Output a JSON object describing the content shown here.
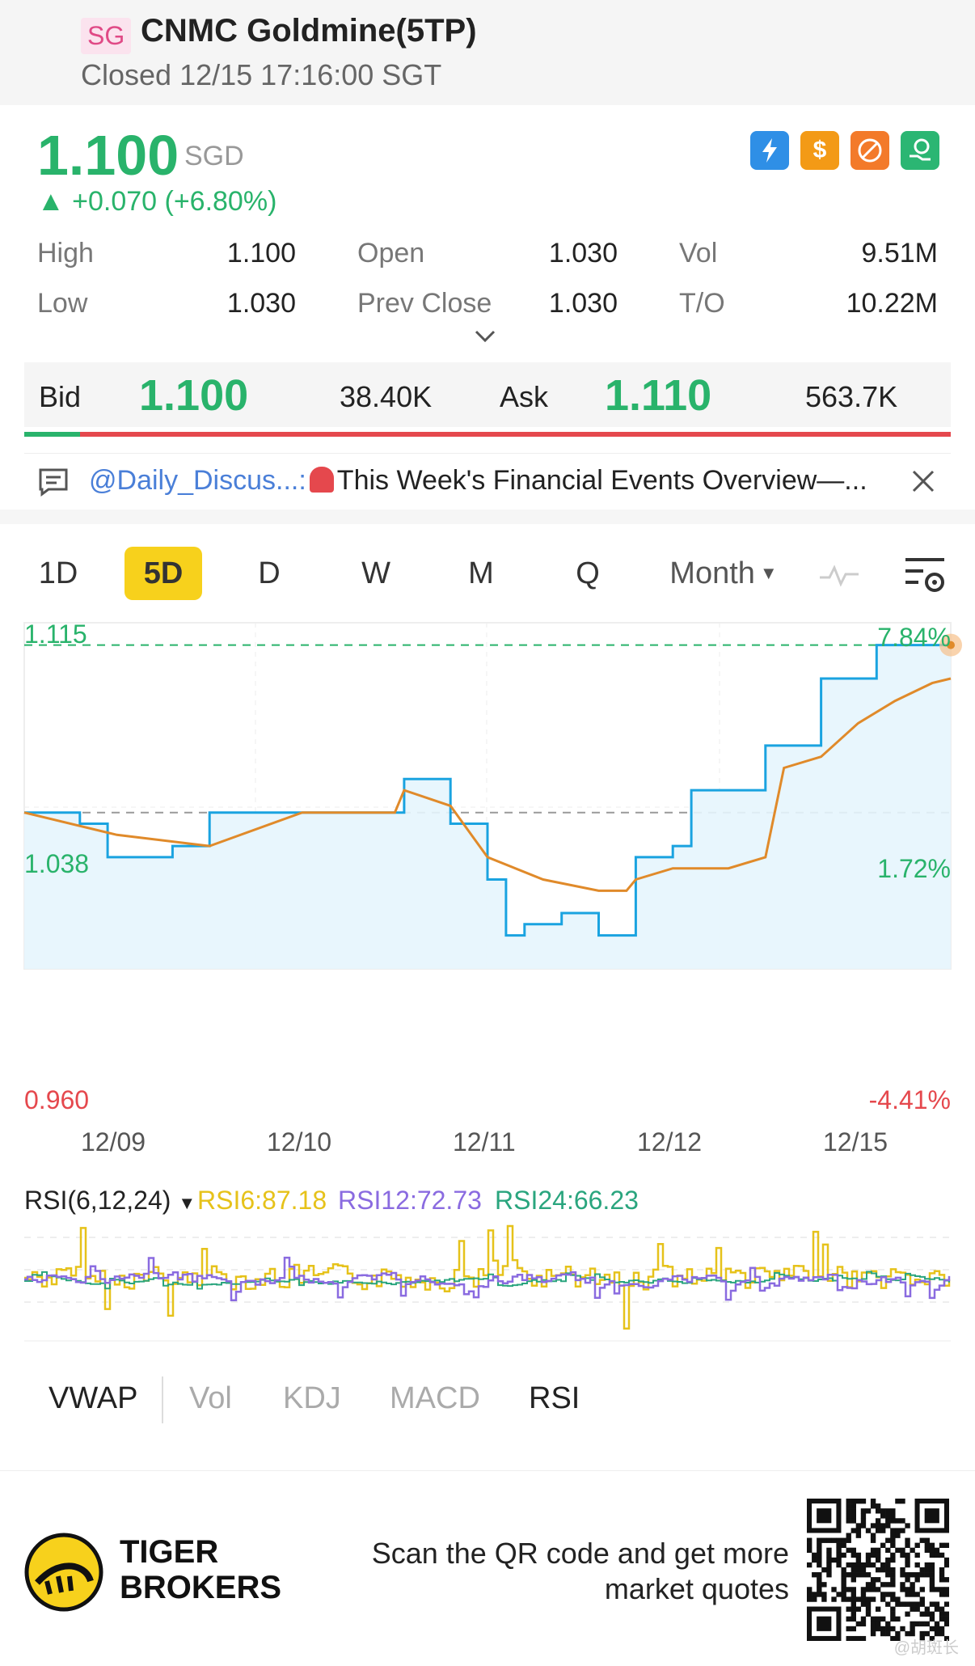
{
  "header": {
    "market_tag": "SG",
    "name": "CNMC Goldmine(5TP)",
    "status": "Closed 12/15 17:16:00 SGT"
  },
  "quote": {
    "price": "1.100",
    "currency": "SGD",
    "change": "+0.070 (+6.80%)",
    "change_arrow": "▲",
    "badges": [
      {
        "icon": "lightning-icon",
        "color": "#2f8fe6"
      },
      {
        "icon": "dollar-icon",
        "color": "#f39a16"
      },
      {
        "icon": "no-short-icon",
        "color": "#f37a2a"
      },
      {
        "icon": "hand-coin-icon",
        "color": "#2bb673"
      }
    ],
    "stats": {
      "high_label": "High",
      "high": "1.100",
      "low_label": "Low",
      "low": "1.030",
      "open_label": "Open",
      "open": "1.030",
      "prev_close_label": "Prev Close",
      "prev_close": "1.030",
      "vol_label": "Vol",
      "vol": "9.51M",
      "to_label": "T/O",
      "to": "10.22M"
    }
  },
  "bidask": {
    "bid_label": "Bid",
    "bid_price": "1.100",
    "bid_size": "38.40K",
    "ask_label": "Ask",
    "ask_price": "1.110",
    "ask_size": "563.7K",
    "bid_fraction": 0.06
  },
  "news": {
    "user": "@Daily_Discus...:",
    "headline": "This Week's Financial Events Overview—..."
  },
  "chart": {
    "tabs": [
      "1D",
      "5D",
      "D",
      "W",
      "M",
      "Q"
    ],
    "active_tab": "5D",
    "month_dropdown": "Month",
    "y_labels": {
      "top": "1.115",
      "mid": "1.038",
      "bottom": "0.960"
    },
    "pct_labels": {
      "top": "7.84%",
      "mid": "1.72%",
      "bottom": "-4.41%"
    },
    "x_labels": [
      "12/09",
      "12/10",
      "12/11",
      "12/12",
      "12/15"
    ],
    "rsi_title": "RSI(6,12,24)",
    "rsi6": "RSI6:87.18",
    "rsi12": "RSI12:72.73",
    "rsi24": "RSI24:66.23",
    "indicator_tabs": [
      "VWAP",
      "Vol",
      "KDJ",
      "MACD",
      "RSI"
    ]
  },
  "chart_data": {
    "type": "line",
    "x_categories": [
      "12/09",
      "12/10",
      "12/11",
      "12/12",
      "12/15"
    ],
    "ylim": [
      0.96,
      1.115
    ],
    "prev_close": 1.03,
    "series": [
      {
        "name": "",
        "color": "#1aa3e0",
        "points": [
          [
            0,
            1.03
          ],
          [
            0.3,
            1.025
          ],
          [
            0.45,
            1.01
          ],
          [
            0.7,
            1.01
          ],
          [
            0.8,
            1.015
          ],
          [
            1.0,
            1.03
          ],
          [
            1.4,
            1.03
          ],
          [
            2.0,
            1.03
          ],
          [
            2.05,
            1.045
          ],
          [
            2.3,
            1.025
          ],
          [
            2.5,
            1.0
          ],
          [
            2.6,
            0.975
          ],
          [
            2.7,
            0.98
          ],
          [
            2.9,
            0.985
          ],
          [
            3.1,
            0.975
          ],
          [
            3.2,
            0.975
          ],
          [
            3.3,
            1.01
          ],
          [
            3.5,
            1.015
          ],
          [
            3.6,
            1.04
          ],
          [
            3.9,
            1.04
          ],
          [
            4.0,
            1.06
          ],
          [
            4.15,
            1.06
          ],
          [
            4.3,
            1.09
          ],
          [
            4.45,
            1.09
          ],
          [
            4.6,
            1.105
          ],
          [
            4.9,
            1.105
          ]
        ]
      },
      {
        "name": "",
        "color": "#e08a2a",
        "points": [
          [
            0,
            1.03
          ],
          [
            0.5,
            1.02
          ],
          [
            1.0,
            1.015
          ],
          [
            1.5,
            1.03
          ],
          [
            2.0,
            1.03
          ],
          [
            2.05,
            1.04
          ],
          [
            2.3,
            1.033
          ],
          [
            2.5,
            1.01
          ],
          [
            2.8,
            1.0
          ],
          [
            3.1,
            0.995
          ],
          [
            3.25,
            0.995
          ],
          [
            3.3,
            1.0
          ],
          [
            3.5,
            1.005
          ],
          [
            3.8,
            1.005
          ],
          [
            4.0,
            1.01
          ],
          [
            4.1,
            1.05
          ],
          [
            4.3,
            1.055
          ],
          [
            4.5,
            1.07
          ],
          [
            4.7,
            1.08
          ],
          [
            4.9,
            1.088
          ]
        ]
      }
    ]
  },
  "footer": {
    "brand_line1": "TIGER",
    "brand_line2": "BROKERS",
    "cta_line1": "Scan the QR code and get more",
    "cta_line2": "market quotes",
    "watermark": "@胡斑长"
  }
}
